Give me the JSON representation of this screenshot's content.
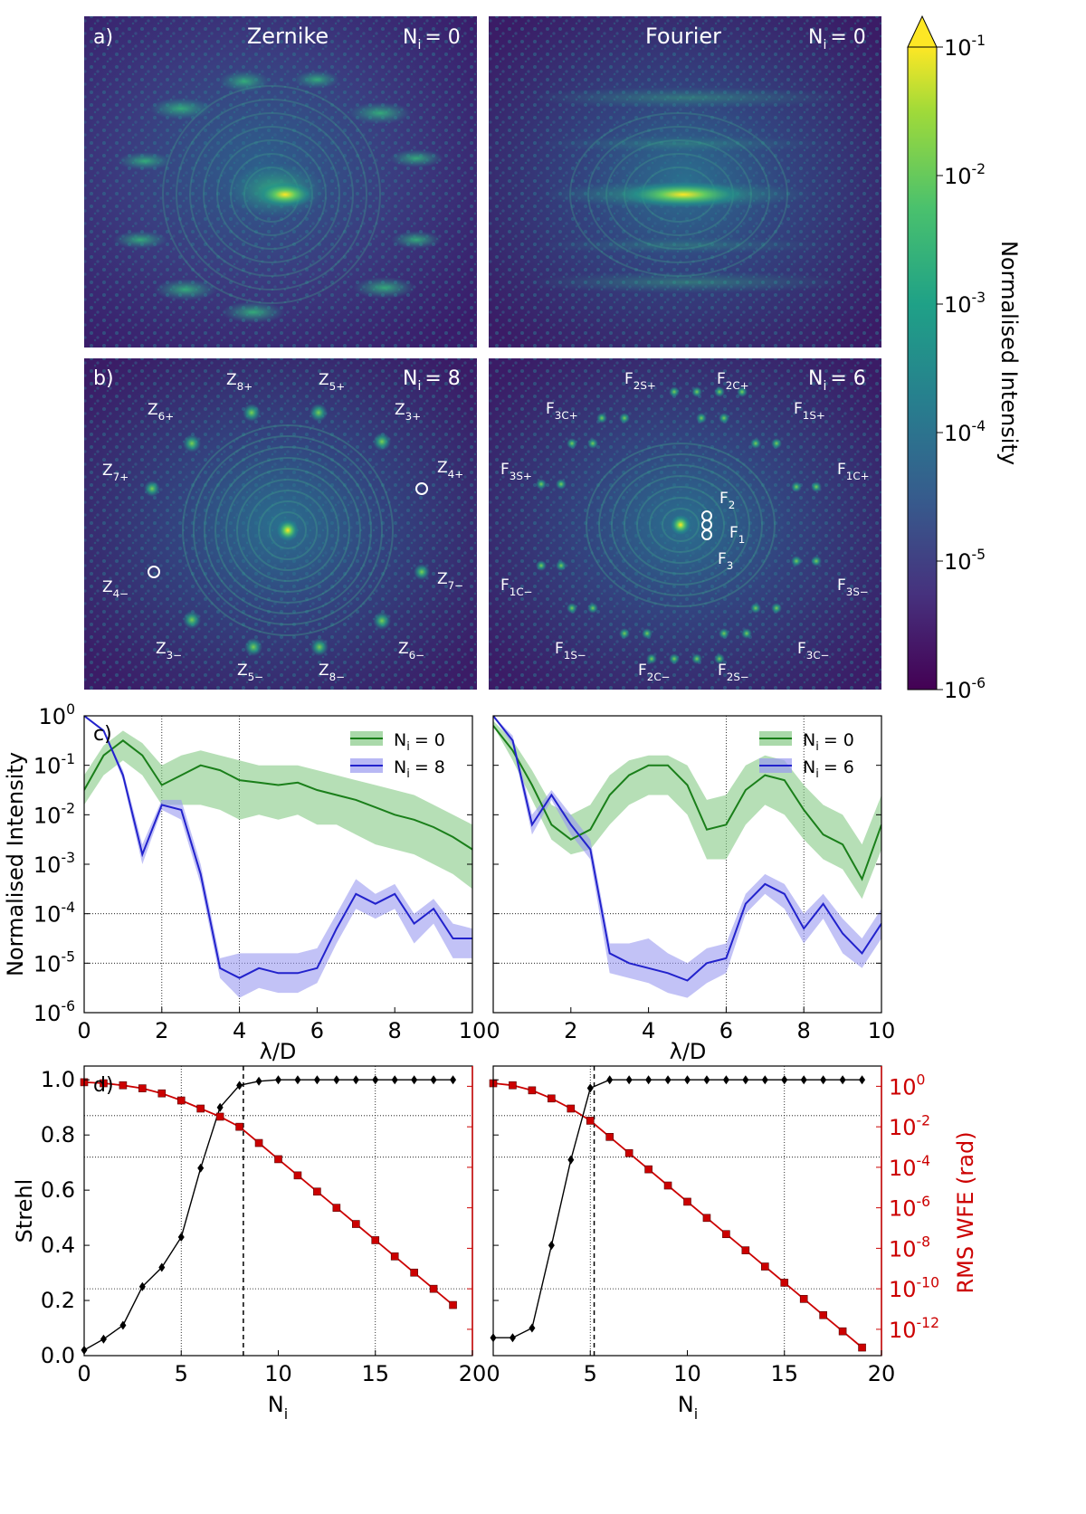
{
  "colorbar": {
    "label": "Normalised Intensity",
    "ticks": [
      {
        "base": "10",
        "exp": "-1"
      },
      {
        "base": "10",
        "exp": "-2"
      },
      {
        "base": "10",
        "exp": "-3"
      },
      {
        "base": "10",
        "exp": "-4"
      },
      {
        "base": "10",
        "exp": "-5"
      },
      {
        "base": "10",
        "exp": "-6"
      }
    ],
    "colors": [
      "#440154",
      "#46327e",
      "#365c8d",
      "#277f8e",
      "#1fa187",
      "#4ac16d",
      "#a0da39",
      "#fde725"
    ]
  },
  "panel_a": {
    "label": "a)",
    "left": {
      "title": "Zernike",
      "ni": "N",
      "ni_sub": "i",
      "ni_val": "= 0"
    },
    "right": {
      "title": "Fourier",
      "ni": "N",
      "ni_sub": "i",
      "ni_val": "= 0"
    }
  },
  "panel_b": {
    "label": "b)",
    "left": {
      "ni": "N",
      "ni_sub": "i",
      "ni_val": "= 8",
      "spots": [
        {
          "main": "Z",
          "sub": "8+"
        },
        {
          "main": "Z",
          "sub": "5+"
        },
        {
          "main": "Z",
          "sub": "6+"
        },
        {
          "main": "Z",
          "sub": "3+"
        },
        {
          "main": "Z",
          "sub": "7+"
        },
        {
          "main": "Z",
          "sub": "4+"
        },
        {
          "main": "Z",
          "sub": "4−"
        },
        {
          "main": "Z",
          "sub": "7−"
        },
        {
          "main": "Z",
          "sub": "3−"
        },
        {
          "main": "Z",
          "sub": "6−"
        },
        {
          "main": "Z",
          "sub": "5−"
        },
        {
          "main": "Z",
          "sub": "8−"
        }
      ]
    },
    "right": {
      "ni": "N",
      "ni_sub": "i",
      "ni_val": "= 6",
      "spots": [
        {
          "main": "F",
          "sub": "2S+"
        },
        {
          "main": "F",
          "sub": "2C+"
        },
        {
          "main": "F",
          "sub": "3C+"
        },
        {
          "main": "F",
          "sub": "1S+"
        },
        {
          "main": "F",
          "sub": "3S+"
        },
        {
          "main": "F",
          "sub": "1C+"
        },
        {
          "main": "F",
          "sub": "2"
        },
        {
          "main": "F",
          "sub": "1"
        },
        {
          "main": "F",
          "sub": "3"
        },
        {
          "main": "F",
          "sub": "1C−"
        },
        {
          "main": "F",
          "sub": "3S−"
        },
        {
          "main": "F",
          "sub": "1S−"
        },
        {
          "main": "F",
          "sub": "3C−"
        },
        {
          "main": "F",
          "sub": "2C−"
        },
        {
          "main": "F",
          "sub": "2S−"
        }
      ]
    }
  },
  "chart_data": [
    {
      "type": "line",
      "panel": "c) left",
      "label": "c)",
      "xlabel": "λ/D",
      "ylabel": "Normalised Intensity",
      "xlim": [
        0,
        10
      ],
      "ylim_exponent": [
        -6,
        0
      ],
      "log_y": true,
      "grid": "dotted, selected lines",
      "xticks": [
        "0",
        "2",
        "4",
        "6",
        "8",
        "10"
      ],
      "yticks": [
        {
          "base": "10",
          "exp": "0"
        },
        {
          "base": "10",
          "exp": "-1"
        },
        {
          "base": "10",
          "exp": "-2"
        },
        {
          "base": "10",
          "exp": "-3"
        },
        {
          "base": "10",
          "exp": "-4"
        },
        {
          "base": "10",
          "exp": "-5"
        },
        {
          "base": "10",
          "exp": "-6"
        }
      ],
      "legend_position": "top-right",
      "x": [
        0,
        0.5,
        1,
        1.5,
        2,
        2.5,
        3,
        3.5,
        4,
        4.5,
        5,
        5.5,
        6,
        6.5,
        7,
        7.5,
        8,
        8.5,
        9,
        9.5,
        10
      ],
      "series": [
        {
          "name": "N",
          "sub": "i",
          "val": "= 0",
          "color": "#1a7f1a",
          "log10_median": [
            -1.5,
            -0.8,
            -0.5,
            -0.8,
            -1.4,
            -1.2,
            -1.0,
            -1.1,
            -1.3,
            -1.35,
            -1.4,
            -1.35,
            -1.5,
            -1.6,
            -1.7,
            -1.85,
            -2.0,
            -2.1,
            -2.25,
            -2.45,
            -2.7
          ],
          "log10_lo": [
            -1.8,
            -1.2,
            -0.9,
            -1.2,
            -1.8,
            -1.8,
            -1.8,
            -1.9,
            -2.1,
            -2.0,
            -2.1,
            -2.0,
            -2.2,
            -2.2,
            -2.4,
            -2.6,
            -2.7,
            -2.8,
            -3.0,
            -3.2,
            -3.5
          ],
          "log10_hi": [
            -1.2,
            -0.6,
            -0.3,
            -0.55,
            -1.0,
            -0.8,
            -0.7,
            -0.8,
            -0.9,
            -1.0,
            -1.0,
            -1.0,
            -1.1,
            -1.2,
            -1.3,
            -1.4,
            -1.5,
            -1.6,
            -1.8,
            -2.0,
            -2.2
          ]
        },
        {
          "name": "N",
          "sub": "i",
          "val": "= 8",
          "color": "#2222cc",
          "log10_median": [
            0,
            -0.3,
            -1.2,
            -2.8,
            -1.8,
            -1.9,
            -3.2,
            -5.1,
            -5.3,
            -5.1,
            -5.2,
            -5.2,
            -5.1,
            -4.3,
            -3.6,
            -3.8,
            -3.6,
            -4.2,
            -3.9,
            -4.5,
            -4.5
          ],
          "log10_lo": [
            0,
            -0.3,
            -1.3,
            -3.0,
            -1.9,
            -2.1,
            -3.4,
            -5.3,
            -5.7,
            -5.5,
            -5.6,
            -5.6,
            -5.4,
            -4.6,
            -3.9,
            -4.1,
            -3.9,
            -4.6,
            -4.2,
            -4.9,
            -4.9
          ],
          "log10_hi": [
            0,
            -0.3,
            -1.1,
            -2.6,
            -1.7,
            -1.7,
            -3.0,
            -4.9,
            -4.8,
            -4.8,
            -4.8,
            -4.8,
            -4.7,
            -4.0,
            -3.3,
            -3.6,
            -3.4,
            -4.0,
            -3.7,
            -4.2,
            -4.3
          ]
        }
      ]
    },
    {
      "type": "line",
      "panel": "c) right",
      "xlabel": "λ/D",
      "xlim": [
        0,
        10
      ],
      "ylim_exponent": [
        -6,
        0
      ],
      "log_y": true,
      "xticks": [
        "0",
        "2",
        "4",
        "6",
        "8",
        "10"
      ],
      "legend_position": "top-right",
      "x": [
        0,
        0.5,
        1,
        1.5,
        2,
        2.5,
        3,
        3.5,
        4,
        4.5,
        5,
        5.5,
        6,
        6.5,
        7,
        7.5,
        8,
        8.5,
        9,
        9.5,
        10
      ],
      "series": [
        {
          "name": "N",
          "sub": "i",
          "val": "= 0",
          "color": "#1a7f1a",
          "log10_median": [
            -0.2,
            -0.7,
            -1.4,
            -2.2,
            -2.5,
            -2.3,
            -1.6,
            -1.2,
            -1.0,
            -1.0,
            -1.4,
            -2.3,
            -2.2,
            -1.5,
            -1.2,
            -1.3,
            -1.9,
            -2.4,
            -2.6,
            -3.3,
            -2.2
          ],
          "log10_lo": [
            -0.2,
            -0.9,
            -1.7,
            -2.5,
            -2.8,
            -2.7,
            -2.2,
            -1.8,
            -1.6,
            -1.6,
            -2.0,
            -2.9,
            -2.9,
            -2.2,
            -1.8,
            -2.0,
            -2.5,
            -2.9,
            -3.1,
            -3.7,
            -2.7
          ],
          "log10_hi": [
            -0.1,
            -0.5,
            -1.1,
            -1.8,
            -2.0,
            -1.8,
            -1.2,
            -0.9,
            -0.8,
            -0.8,
            -1.0,
            -1.7,
            -1.6,
            -1.0,
            -0.8,
            -0.9,
            -1.4,
            -1.8,
            -2.0,
            -2.6,
            -1.6
          ]
        },
        {
          "name": "N",
          "sub": "i",
          "val": "= 6",
          "color": "#2222cc",
          "log10_median": [
            0,
            -0.5,
            -2.2,
            -1.6,
            -2.2,
            -2.7,
            -4.8,
            -5.0,
            -5.1,
            -5.2,
            -5.35,
            -5.0,
            -4.9,
            -3.8,
            -3.4,
            -3.6,
            -4.3,
            -3.8,
            -4.4,
            -4.8,
            -4.2
          ],
          "log10_lo": [
            0,
            -0.6,
            -2.4,
            -1.7,
            -2.4,
            -2.9,
            -5.2,
            -5.3,
            -5.4,
            -5.6,
            -5.7,
            -5.4,
            -5.2,
            -4.0,
            -3.6,
            -3.9,
            -4.6,
            -4.1,
            -4.8,
            -5.1,
            -4.5
          ],
          "log10_hi": [
            0,
            -0.4,
            -2.0,
            -1.5,
            -2.0,
            -2.5,
            -4.6,
            -4.6,
            -4.5,
            -4.8,
            -5.0,
            -4.7,
            -4.6,
            -3.6,
            -3.2,
            -3.4,
            -4.0,
            -3.6,
            -4.1,
            -4.5,
            -3.9
          ]
        }
      ]
    },
    {
      "type": "line",
      "panel": "d) left",
      "label": "d)",
      "xlabel": "N",
      "xlabel_sub": "i",
      "ylabel": "Strehl",
      "y2label": "RMS WFE (rad)",
      "xlim": [
        0,
        20
      ],
      "ylim": [
        0,
        1.05
      ],
      "y2_exponent_range": [
        -13.3,
        1
      ],
      "xticks": [
        "0",
        "5",
        "10",
        "15",
        "20"
      ],
      "yticks": [
        "0.0",
        "0.2",
        "0.4",
        "0.6",
        "0.8",
        "1.0"
      ],
      "vline_x": 8.2,
      "x": [
        0,
        1,
        2,
        3,
        4,
        5,
        6,
        7,
        8,
        9,
        10,
        11,
        12,
        13,
        14,
        15,
        16,
        17,
        18,
        19
      ],
      "series": [
        {
          "name": "Strehl",
          "color": "#000000",
          "marker": "diamond",
          "values": [
            0.02,
            0.06,
            0.11,
            0.25,
            0.32,
            0.43,
            0.68,
            0.9,
            0.98,
            0.995,
            1.0,
            1.0,
            1.0,
            1.0,
            1.0,
            1.0,
            1.0,
            1.0,
            1.0,
            1.0
          ]
        },
        {
          "name": "RMS WFE",
          "color": "#cc0000",
          "marker": "square",
          "log10_values": [
            0.2,
            0.15,
            0.05,
            -0.1,
            -0.35,
            -0.7,
            -1.1,
            -1.5,
            -2.0,
            -2.8,
            -3.6,
            -4.4,
            -5.2,
            -6.0,
            -6.8,
            -7.6,
            -8.4,
            -9.2,
            -10.0,
            -10.8
          ]
        }
      ]
    },
    {
      "type": "line",
      "panel": "d) right",
      "xlabel": "N",
      "xlabel_sub": "i",
      "y2label": "RMS WFE (rad)",
      "xlim": [
        0,
        20
      ],
      "ylim": [
        0,
        1.05
      ],
      "y2_exponent_range": [
        -13.3,
        1
      ],
      "xticks": [
        "0",
        "5",
        "10",
        "15",
        "20"
      ],
      "y2ticks": [
        {
          "base": "10",
          "exp": "0"
        },
        {
          "base": "10",
          "exp": "-2"
        },
        {
          "base": "10",
          "exp": "-4"
        },
        {
          "base": "10",
          "exp": "-6"
        },
        {
          "base": "10",
          "exp": "-8"
        },
        {
          "base": "10",
          "exp": "-10"
        },
        {
          "base": "10",
          "exp": "-12"
        }
      ],
      "vline_x": 5.2,
      "x": [
        0,
        1,
        2,
        3,
        4,
        5,
        6,
        7,
        8,
        9,
        10,
        11,
        12,
        13,
        14,
        15,
        16,
        17,
        18,
        19
      ],
      "series": [
        {
          "name": "Strehl",
          "color": "#000000",
          "marker": "diamond",
          "values": [
            0.065,
            0.065,
            0.1,
            0.4,
            0.71,
            0.97,
            1.0,
            1.0,
            1.0,
            1.0,
            1.0,
            1.0,
            1.0,
            1.0,
            1.0,
            1.0,
            1.0,
            1.0,
            1.0,
            1.0
          ]
        },
        {
          "name": "RMS WFE",
          "color": "#cc0000",
          "marker": "square",
          "log10_values": [
            0.15,
            0.05,
            -0.2,
            -0.6,
            -1.1,
            -1.7,
            -2.5,
            -3.3,
            -4.1,
            -4.9,
            -5.7,
            -6.5,
            -7.3,
            -8.1,
            -8.9,
            -9.7,
            -10.5,
            -11.3,
            -12.1,
            -12.9
          ]
        }
      ]
    }
  ]
}
